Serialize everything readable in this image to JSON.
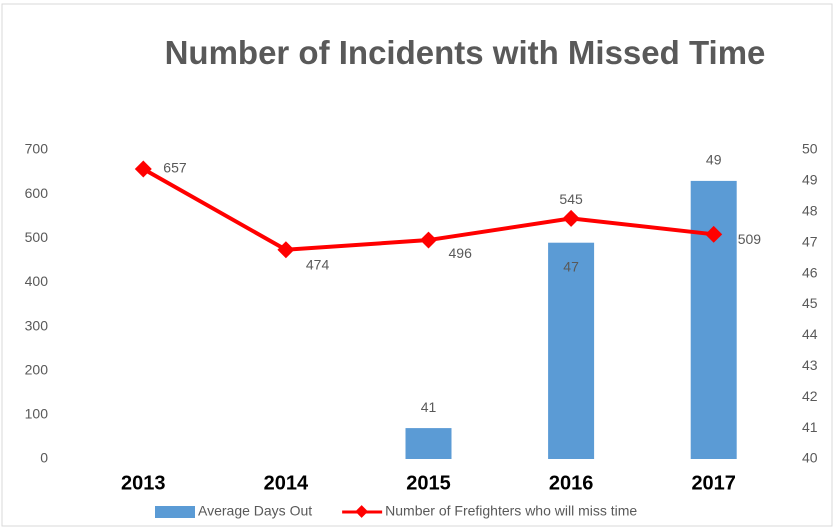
{
  "chart_data": {
    "type": "combo",
    "title": "Number of Incidents with Missed Time",
    "categories": [
      "2013",
      "2014",
      "2015",
      "2016",
      "2017"
    ],
    "series": [
      {
        "name": "Average Days Out",
        "type": "bar",
        "axis": "y2",
        "color": "#5b9bd5",
        "values": [
          null,
          null,
          41,
          47,
          49
        ]
      },
      {
        "name": "Number of Frefighters who will miss time",
        "type": "line",
        "color": "#ff0000",
        "values": [
          657,
          474,
          496,
          545,
          509
        ]
      }
    ],
    "ylim": [
      0,
      700
    ],
    "yticks": [
      0,
      100,
      200,
      300,
      400,
      500,
      600,
      700
    ],
    "y2lim": [
      40,
      50
    ],
    "y2ticks": [
      40,
      41,
      42,
      43,
      44,
      45,
      46,
      47,
      48,
      49,
      50
    ],
    "legend": "bottom"
  }
}
